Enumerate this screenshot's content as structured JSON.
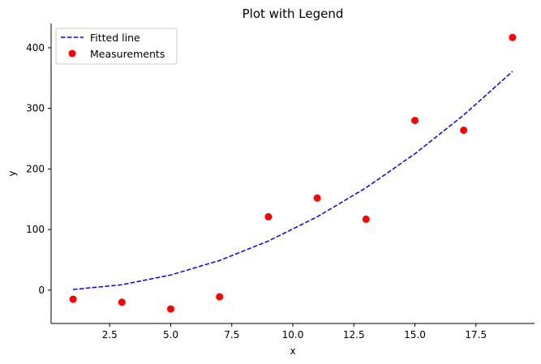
{
  "chart_data": {
    "type": "line",
    "title": "Plot with Legend",
    "xlabel": "x",
    "ylabel": "y",
    "xlim": [
      0.1,
      19.9
    ],
    "ylim": [
      -55,
      440
    ],
    "xticks": [
      2.5,
      5.0,
      7.5,
      10.0,
      12.5,
      15.0,
      17.5
    ],
    "xtick_labels": [
      "2.5",
      "5.0",
      "7.5",
      "10.0",
      "12.5",
      "15.0",
      "17.5"
    ],
    "yticks": [
      0,
      100,
      200,
      300,
      400
    ],
    "ytick_labels": [
      "0",
      "100",
      "200",
      "300",
      "400"
    ],
    "grid": false,
    "legend_position": "top-left",
    "series": [
      {
        "name": "Fitted line",
        "kind": "line",
        "style": "dashed",
        "color": "#0000ff",
        "x": [
          1,
          3,
          5,
          7,
          9,
          11,
          13,
          15,
          17,
          19
        ],
        "y": [
          1,
          9,
          25,
          49,
          81,
          121,
          169,
          225,
          289,
          361
        ]
      },
      {
        "name": "Measurements",
        "kind": "scatter",
        "color": "#ff0000",
        "x": [
          1,
          3,
          5,
          7,
          9,
          11,
          13,
          15,
          17,
          19
        ],
        "y": [
          -15,
          -20,
          -31,
          -11,
          121,
          152,
          117,
          280,
          264,
          417
        ]
      }
    ]
  }
}
